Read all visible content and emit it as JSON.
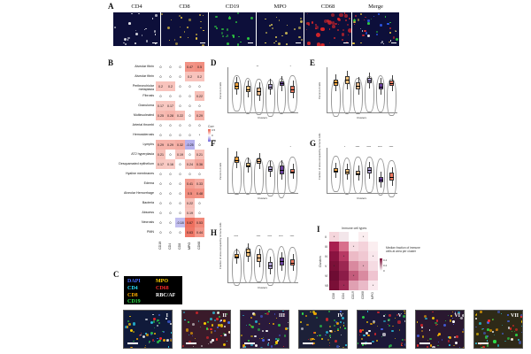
{
  "panel_a": {
    "letter": "A",
    "tiles": [
      {
        "label": "CD4",
        "color": "#ffffff"
      },
      {
        "label": "CD8",
        "color": "#f4d03f"
      },
      {
        "label": "CD19",
        "color": "#2ecc40"
      },
      {
        "label": "MPO",
        "color": "#f7e15a"
      },
      {
        "label": "CD68",
        "color": "#e82828"
      },
      {
        "label": "Merge",
        "color": "#ffffff"
      }
    ]
  },
  "panel_b": {
    "letter": "B",
    "rows": [
      {
        "label": "Alveolar fibrin",
        "values": [
          "0",
          "0",
          "0",
          "0.47",
          "0.5"
        ]
      },
      {
        "label": "Alveolar fibrin",
        "values": [
          "0",
          "0",
          "0",
          "0.2",
          "0.2"
        ]
      },
      {
        "label": "Peribronchiolar metaplasia",
        "values": [
          "0.2",
          "0.2",
          "0",
          "0",
          "0"
        ]
      },
      {
        "label": "Fibrosis",
        "values": [
          "0",
          "0",
          "0",
          "0",
          "0.22"
        ]
      },
      {
        "label": "Granuloma",
        "values": [
          "0.17",
          "0.17",
          "0",
          "0",
          "0"
        ]
      },
      {
        "label": "Multinucleated",
        "values": [
          "0.25",
          "0.28",
          "0.22",
          "0",
          "0.29"
        ]
      },
      {
        "label": "Arterial thrombi",
        "values": [
          "0",
          "0",
          "0",
          "0",
          "0"
        ]
      },
      {
        "label": "Hemosiderosis",
        "values": [
          "0",
          "0",
          "0",
          "0",
          "*"
        ]
      },
      {
        "label": "Lymphs",
        "values": [
          "0.29",
          "0.29",
          "0.32",
          "-0.25",
          "0"
        ]
      },
      {
        "label": "AT2 hyperplasia",
        "values": [
          "0.21",
          "0",
          "0.19",
          "0",
          "0.21"
        ]
      },
      {
        "label": "Desquamated epithelium",
        "values": [
          "0.17",
          "0.16",
          "0",
          "0.24",
          "0.36"
        ]
      },
      {
        "label": "Hyaline membranes",
        "values": [
          "0",
          "0",
          "0",
          "0",
          "0"
        ]
      },
      {
        "label": "Edema",
        "values": [
          "0",
          "0",
          "0",
          "0.41",
          "0.33"
        ]
      },
      {
        "label": "Alveolar Hemorrhage",
        "values": [
          "0",
          "0",
          "0",
          "0.5",
          "0.48"
        ]
      },
      {
        "label": "Bacteria",
        "values": [
          "0",
          "0",
          "0",
          "0.22",
          "0"
        ]
      },
      {
        "label": "Abscess",
        "values": [
          "0",
          "0",
          "0",
          "0.19",
          "0"
        ]
      },
      {
        "label": "Necrosis",
        "values": [
          "0",
          "0",
          "-0.18",
          "0.67",
          "0.53"
        ]
      },
      {
        "label": "PMN",
        "values": [
          "0",
          "0",
          "0",
          "0.63",
          "0.44"
        ]
      }
    ],
    "columns": [
      "CD19",
      "CD4",
      "CD8",
      "MPO",
      "CD68"
    ],
    "colorbar": {
      "title": "Corr",
      "ticks": [
        "0.5",
        "0",
        "-0.5"
      ]
    }
  },
  "box_panels": [
    {
      "letter": "D",
      "ylabel": "Percent of cells",
      "xlabel": "Clusters",
      "sig": [
        "",
        "",
        "**",
        "",
        "",
        "*"
      ]
    },
    {
      "letter": "E",
      "ylabel": "Percent of cells",
      "xlabel": "Clusters",
      "sig": [
        "",
        "",
        "",
        "",
        "",
        ""
      ]
    },
    {
      "letter": "F",
      "ylabel": "Percent of cells",
      "xlabel": "Clusters",
      "sig": [
        "",
        "",
        "",
        "",
        "",
        "*"
      ]
    },
    {
      "letter": "G",
      "ylabel": "Fraction of area occupied by immune cells",
      "xlabel": "Clusters",
      "sig": [
        "",
        "*",
        "****",
        "****",
        "****",
        "****"
      ]
    },
    {
      "letter": "H",
      "ylabel": "Fraction of area occupied by immune cells",
      "xlabel": "Clusters",
      "sig": [
        "****",
        "",
        "****",
        "****",
        "****",
        "****"
      ]
    }
  ],
  "panel_i": {
    "letter": "I",
    "title": "Immune cell types",
    "ylabel": "Clusters",
    "rows": [
      "II",
      "III",
      "IV",
      "V",
      "VI",
      "VII"
    ],
    "cols": [
      "CD8",
      "CD4",
      "CD19",
      "CD68",
      "MPO"
    ],
    "legend_title": "Median fraction of immune cells at area per cluster",
    "legend_ticks": [
      "0.4",
      "0.2",
      "0"
    ]
  },
  "panel_c": {
    "letter": "C",
    "legend": [
      {
        "text": "DAPI",
        "color": "#4a6cff"
      },
      {
        "text": "MPO",
        "color": "#ffd000"
      },
      {
        "text": "CD4",
        "color": "#2ae0ff"
      },
      {
        "text": "CD68",
        "color": "#ff2a2a"
      },
      {
        "text": "CD8",
        "color": "#ffb000"
      },
      {
        "text": "RBC/AF",
        "color": "#ffffff"
      },
      {
        "text": "CD19",
        "color": "#2ee04a"
      }
    ],
    "tiles": [
      "I",
      "II",
      "III",
      "IV",
      "V",
      "VI",
      "VII"
    ]
  }
}
